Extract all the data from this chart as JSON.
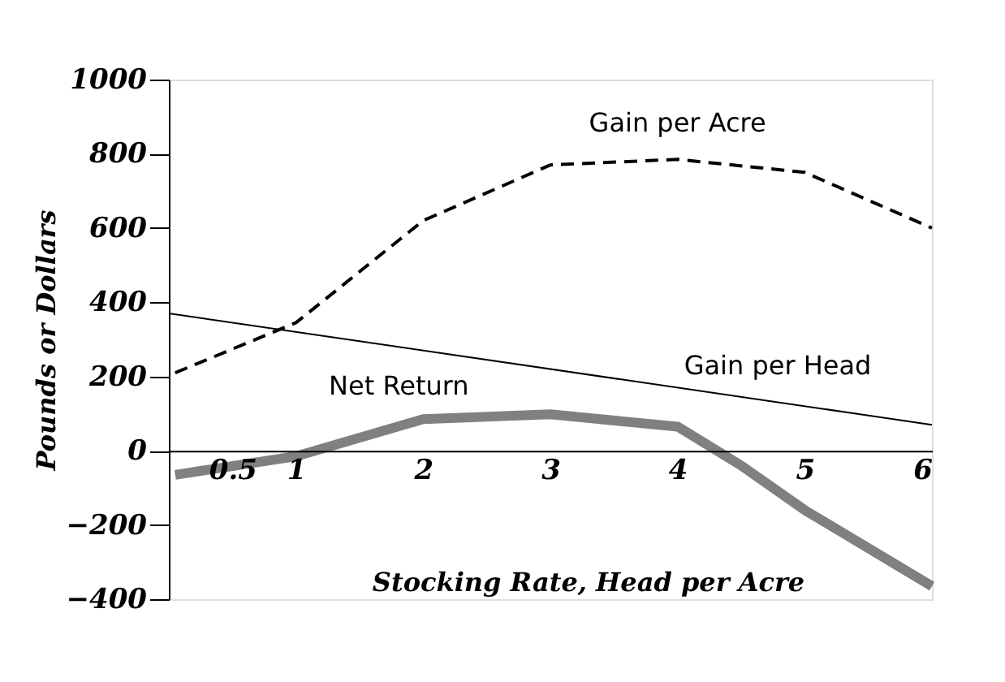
{
  "chart_data": {
    "type": "line",
    "xlabel": "Stocking Rate, Head per Acre",
    "ylabel": "Pounds or Dollars",
    "xlim": [
      0,
      6
    ],
    "xticks": [
      0.5,
      1,
      2,
      3,
      4,
      5,
      6
    ],
    "ylim": [
      -400,
      1000
    ],
    "yticks": [
      -400,
      -200,
      0,
      200,
      400,
      600,
      800,
      1000
    ],
    "grid": false,
    "series": [
      {
        "name": "Gain per Acre",
        "color": "#000000",
        "line_style": "dashed",
        "x": [
          0.05,
          1,
          2,
          3,
          4,
          5,
          6
        ],
        "values": [
          210,
          345,
          620,
          770,
          785,
          750,
          600
        ]
      },
      {
        "name": "Gain per Head",
        "color": "#000000",
        "line_style": "solid",
        "x": [
          0,
          6
        ],
        "values": [
          370,
          70
        ]
      },
      {
        "name": "Net Return",
        "color": "#808080",
        "line_style": "solid",
        "x": [
          0.05,
          1,
          2,
          3,
          4,
          4.5,
          5,
          6
        ],
        "values": [
          -65,
          -15,
          85,
          98,
          65,
          -40,
          -160,
          -365
        ]
      }
    ]
  }
}
